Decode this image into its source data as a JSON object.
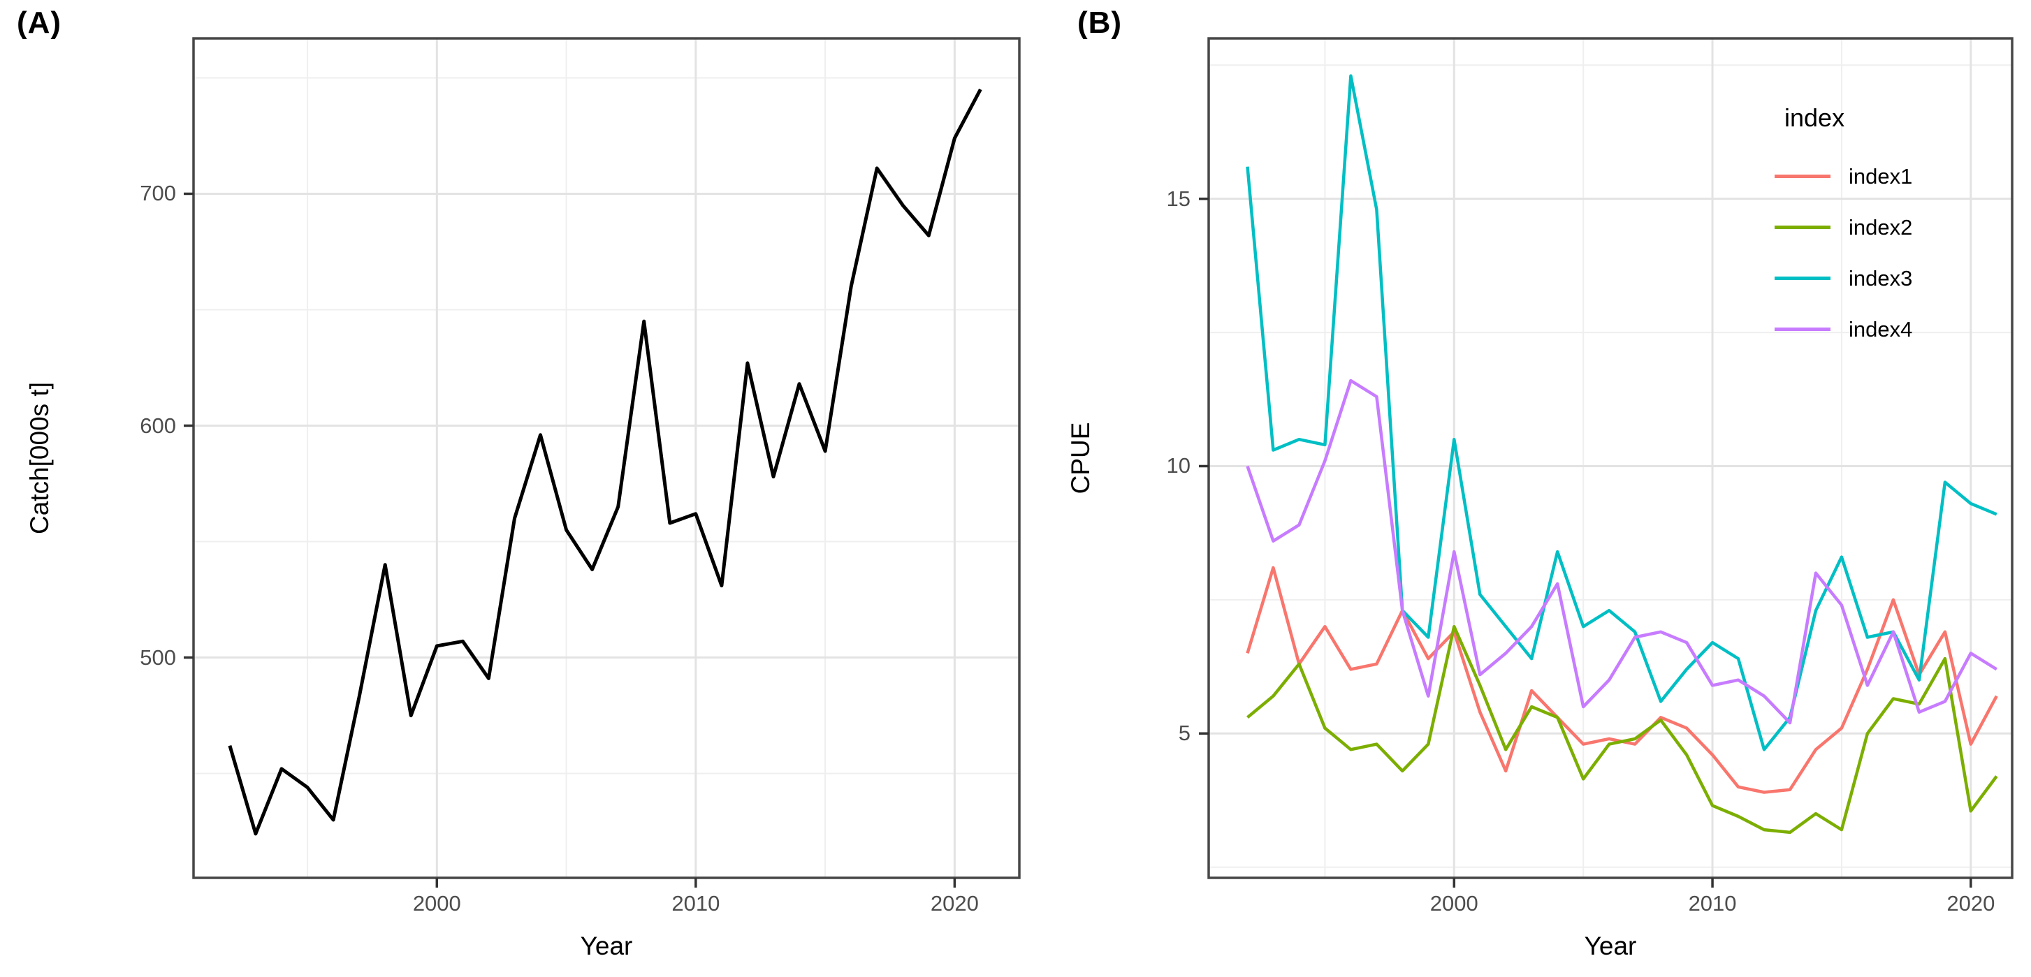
{
  "figure": {
    "background": "#ffffff",
    "panel_border_color": "#474747",
    "grid_major_color": "#e3e3e3",
    "grid_minor_color": "#efefef",
    "tick_mark_color": "#333333",
    "tick_text_color": "#4d4d4d"
  },
  "chart_data": [
    {
      "type": "line",
      "tag": "(A)",
      "xlabel": "Year",
      "ylabel": "Catch[000s t]",
      "grid": true,
      "legend_position": "none",
      "xlim": [
        1990.6,
        2022.5
      ],
      "ylim": [
        405,
        767
      ],
      "x_tick_values": [
        2000,
        2010,
        2020
      ],
      "x_tick_labels": [
        "2000",
        "2010",
        "2020"
      ],
      "y_tick_values": [
        500,
        600,
        700
      ],
      "y_tick_labels": [
        "500",
        "600",
        "700"
      ],
      "x": [
        1992,
        1993,
        1994,
        1995,
        1996,
        1997,
        1998,
        1999,
        2000,
        2001,
        2002,
        2003,
        2004,
        2005,
        2006,
        2007,
        2008,
        2009,
        2010,
        2011,
        2012,
        2013,
        2014,
        2015,
        2016,
        2017,
        2018,
        2019,
        2020,
        2021
      ],
      "series": [
        {
          "name": "Catch",
          "color": "#000000",
          "values": [
            462,
            424,
            452,
            444,
            430,
            483,
            540,
            475,
            505,
            507,
            491,
            560,
            596,
            555,
            538,
            565,
            645,
            558,
            562,
            531,
            627,
            578,
            618,
            589,
            660,
            711,
            695,
            682,
            724,
            745
          ]
        }
      ]
    },
    {
      "type": "line",
      "tag": "(B)",
      "xlabel": "Year",
      "ylabel": "CPUE",
      "grid": true,
      "legend_title": "index",
      "legend_position": "inside top-right",
      "xlim": [
        1990.5,
        2021.6
      ],
      "ylim": [
        2.3,
        18.0
      ],
      "x_tick_values": [
        2000,
        2010,
        2020
      ],
      "x_tick_labels": [
        "2000",
        "2010",
        "2020"
      ],
      "y_tick_values": [
        5,
        10,
        15
      ],
      "y_tick_labels": [
        "5",
        "10",
        "15"
      ],
      "x": [
        1992,
        1993,
        1994,
        1995,
        1996,
        1997,
        1998,
        1999,
        2000,
        2001,
        2002,
        2003,
        2004,
        2005,
        2006,
        2007,
        2008,
        2009,
        2010,
        2011,
        2012,
        2013,
        2014,
        2015,
        2016,
        2017,
        2018,
        2019,
        2020,
        2021
      ],
      "series": [
        {
          "name": "index1",
          "color": "#F8766D",
          "values": [
            6.5,
            8.1,
            6.3,
            7.0,
            6.2,
            6.3,
            7.3,
            6.4,
            6.9,
            5.4,
            4.3,
            5.8,
            5.3,
            4.8,
            4.9,
            4.8,
            5.3,
            5.1,
            4.6,
            4.0,
            3.9,
            3.95,
            4.7,
            5.1,
            6.2,
            7.5,
            6.1,
            6.9,
            4.8,
            5.7
          ]
        },
        {
          "name": "index2",
          "color": "#7CAE00",
          "values": [
            5.3,
            5.7,
            6.3,
            5.1,
            4.7,
            4.8,
            4.3,
            4.8,
            7.0,
            5.9,
            4.7,
            5.5,
            5.3,
            4.15,
            4.8,
            4.9,
            5.25,
            4.6,
            3.65,
            3.45,
            3.2,
            3.15,
            3.5,
            3.2,
            5.0,
            5.65,
            5.55,
            6.4,
            3.55,
            4.2
          ]
        },
        {
          "name": "index3",
          "color": "#00BFC4",
          "values": [
            15.6,
            10.3,
            10.5,
            10.4,
            17.3,
            14.8,
            7.3,
            6.8,
            10.5,
            7.6,
            7.0,
            6.4,
            8.4,
            7.0,
            7.3,
            6.9,
            5.6,
            6.2,
            6.7,
            6.4,
            4.7,
            5.3,
            7.3,
            8.3,
            6.8,
            6.9,
            6.0,
            9.7,
            9.3,
            9.1
          ]
        },
        {
          "name": "index4",
          "color": "#C77CFF",
          "values": [
            10.0,
            8.6,
            8.9,
            10.1,
            11.6,
            11.3,
            7.3,
            5.7,
            8.4,
            6.1,
            6.5,
            7.0,
            7.8,
            5.5,
            6.0,
            6.8,
            6.9,
            6.7,
            5.9,
            6.0,
            5.7,
            5.2,
            8.0,
            7.4,
            5.9,
            6.9,
            5.4,
            5.6,
            6.5,
            6.2
          ]
        }
      ]
    }
  ]
}
